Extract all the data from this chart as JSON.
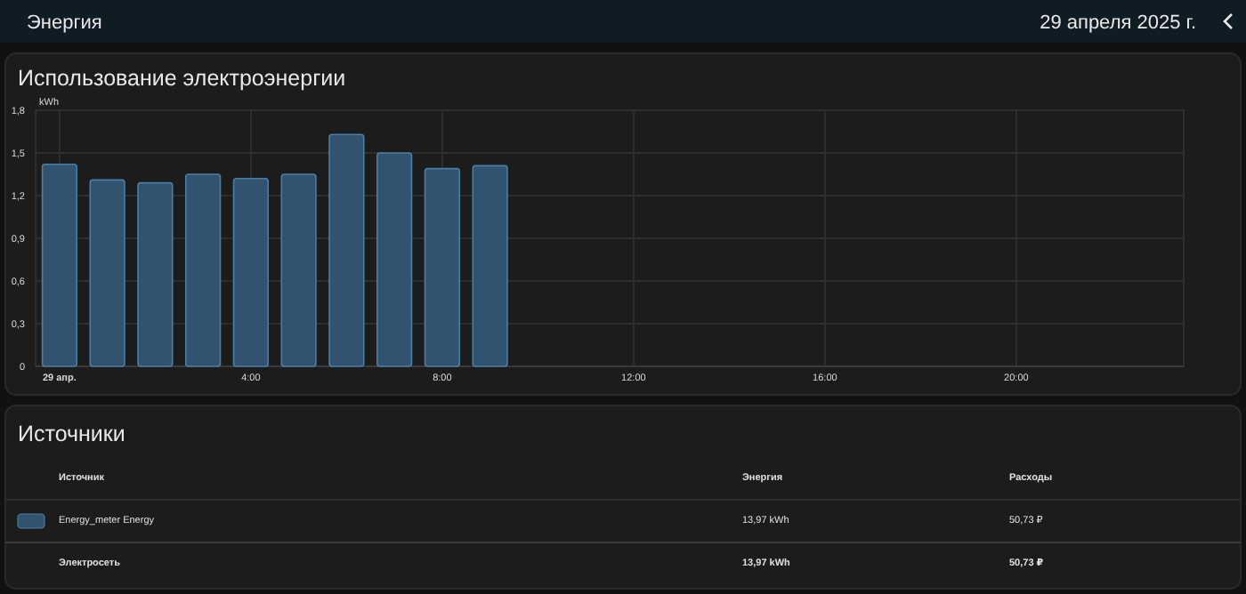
{
  "chart_data": [
    {
      "type": "other",
      "title": "Энергия",
      "subtitle": "29 апреля 2025 г."
    },
    {
      "type": "bar",
      "title": "Использование электроэнергии",
      "ylabel": "kWh",
      "x": [
        "2025-04-29T00:00",
        "2025-04-29T01:00",
        "2025-04-29T02:00",
        "2025-04-29T03:00",
        "2025-04-29T04:00",
        "2025-04-29T05:00",
        "2025-04-29T06:00",
        "2025-04-29T07:00",
        "2025-04-29T08:00",
        "2025-04-29T09:00"
      ],
      "values": [
        1.42,
        1.31,
        1.29,
        1.35,
        1.32,
        1.35,
        1.63,
        1.5,
        1.39,
        1.41
      ],
      "color": "#31536f",
      "xlim": [
        "2025-04-28T23:30",
        "2025-04-29T23:30"
      ],
      "xticks": [
        {
          "value": "2025-04-29T00:00",
          "label": "29 апр."
        },
        {
          "value": "2025-04-29T04:00",
          "label": "4:00"
        },
        {
          "value": "2025-04-29T08:00",
          "label": "8:00"
        },
        {
          "value": "2025-04-29T12:00",
          "label": "12:00"
        },
        {
          "value": "2025-04-29T16:00",
          "label": "16:00"
        },
        {
          "value": "2025-04-29T20:00",
          "label": "20:00"
        }
      ],
      "ylim": [
        0,
        1.8
      ],
      "yticks": [
        {
          "value": 0,
          "label": "0"
        },
        {
          "value": 0.3,
          "label": "0,3"
        },
        {
          "value": 0.6,
          "label": "0,6"
        },
        {
          "value": 0.9,
          "label": "0,9"
        },
        {
          "value": 1.2,
          "label": "1,2"
        },
        {
          "value": 1.5,
          "label": "1,5"
        },
        {
          "value": 1.8,
          "label": "1,8"
        }
      ],
      "grid": true
    },
    {
      "type": "other",
      "title": "Источники",
      "annotations": [
        "Источник",
        "Энергия",
        "Расходы",
        "Energy_meter Energy",
        "13,97 kWh",
        "50,73 ₽",
        "Электросеть",
        "13,97 kWh",
        "50,73 ₽"
      ]
    }
  ]
}
